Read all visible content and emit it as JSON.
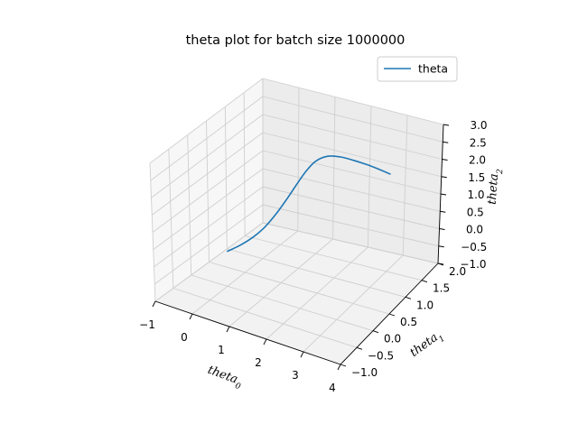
{
  "chart_data": {
    "type": "line3d",
    "title": "theta plot for batch size 1000000",
    "xlabel": "theta",
    "xlabel_sub": "0",
    "ylabel": "theta",
    "ylabel_sub": "1",
    "zlabel": "theta",
    "zlabel_sub": "2",
    "xlim": [
      -1,
      4
    ],
    "ylim": [
      -1,
      2
    ],
    "zlim": [
      -1,
      3
    ],
    "xticks": [
      "−1",
      "0",
      "1",
      "2",
      "3",
      "4"
    ],
    "yticks": [
      "−1.0",
      "−0.5",
      "0.0",
      "0.5",
      "1.0",
      "1.5",
      "2.0"
    ],
    "zticks": [
      "−1.0",
      "−0.5",
      "0.0",
      "0.5",
      "1.0",
      "1.5",
      "2.0",
      "2.5",
      "3.0"
    ],
    "grid": true,
    "legend_position": "top-right",
    "series": [
      {
        "name": "theta",
        "color": "#1f77b4",
        "x": [
          0.0,
          0.3,
          0.55,
          0.75,
          0.9,
          1.02,
          1.12,
          1.22,
          1.35,
          1.55,
          1.8,
          2.1,
          2.4,
          2.7,
          3.0
        ],
        "y": [
          0.0,
          0.08,
          0.18,
          0.3,
          0.45,
          0.62,
          0.8,
          0.98,
          1.12,
          1.25,
          1.35,
          1.42,
          1.48,
          1.52,
          1.55
        ],
        "z": [
          0.0,
          0.22,
          0.45,
          0.7,
          0.98,
          1.28,
          1.58,
          1.86,
          2.06,
          2.14,
          2.1,
          2.02,
          1.93,
          1.84,
          1.75
        ]
      }
    ]
  }
}
